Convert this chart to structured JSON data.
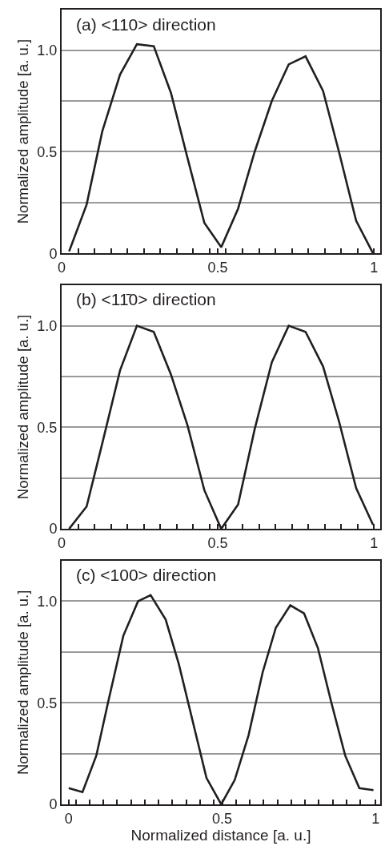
{
  "chart_data": [
    {
      "type": "line",
      "title": "(a) <110> direction",
      "ylabel": "Normalized amplitude [a. u.]",
      "x": [
        0.024,
        0.08,
        0.13,
        0.187,
        0.241,
        0.295,
        0.35,
        0.403,
        0.457,
        0.511,
        0.565,
        0.618,
        0.673,
        0.727,
        0.781,
        0.837,
        0.888,
        0.943,
        0.997
      ],
      "series": [
        {
          "color": "#231f20",
          "values": [
            0.01,
            0.24,
            0.6,
            0.88,
            1.03,
            1.02,
            0.79,
            0.47,
            0.15,
            0.03,
            0.22,
            0.5,
            0.75,
            0.93,
            0.97,
            0.8,
            0.5,
            0.16,
            0.0
          ]
        }
      ],
      "xlim": [
        0,
        1.02
      ],
      "ylim": [
        0,
        1.2
      ],
      "xticks": [
        0,
        {
          "value": 0.053,
          "label": null
        },
        {
          "value": 0.105,
          "label": null
        },
        {
          "value": 0.158,
          "label": null
        },
        {
          "value": 0.211,
          "label": null
        },
        {
          "value": 0.263,
          "label": null
        },
        {
          "value": 0.316,
          "label": null
        },
        {
          "value": 0.368,
          "label": null
        },
        {
          "value": 0.421,
          "label": null
        },
        {
          "value": 0.474,
          "label": null
        },
        0.5,
        {
          "value": 0.526,
          "label": null
        },
        {
          "value": 0.579,
          "label": null
        },
        {
          "value": 0.632,
          "label": null
        },
        {
          "value": 0.684,
          "label": null
        },
        {
          "value": 0.737,
          "label": null
        },
        {
          "value": 0.789,
          "label": null
        },
        {
          "value": 0.842,
          "label": null
        },
        {
          "value": 0.895,
          "label": null
        },
        {
          "value": 0.947,
          "label": null
        },
        1
      ],
      "yticks": [
        0,
        {
          "value": 0.25,
          "label": null
        },
        0.5,
        {
          "value": 0.75,
          "label": null
        },
        {
          "value": 1.0,
          "label": "1.0"
        }
      ],
      "grid": "y"
    },
    {
      "type": "line",
      "title": "(b) <11̄0> direction",
      "ylabel": "Normalized amplitude [a. u.]",
      "x": [
        0.024,
        0.08,
        0.13,
        0.187,
        0.241,
        0.295,
        0.35,
        0.403,
        0.457,
        0.511,
        0.565,
        0.618,
        0.673,
        0.727,
        0.781,
        0.837,
        0.888,
        0.943,
        0.997
      ],
      "series": [
        {
          "color": "#231f20",
          "values": [
            0.0,
            0.11,
            0.42,
            0.78,
            1.0,
            0.97,
            0.76,
            0.51,
            0.19,
            0.0,
            0.12,
            0.49,
            0.82,
            1.0,
            0.97,
            0.8,
            0.53,
            0.2,
            0.02
          ]
        }
      ],
      "xlim": [
        0,
        1.02
      ],
      "ylim": [
        0,
        1.2
      ],
      "xticks": [
        0,
        {
          "value": 0.053,
          "label": null
        },
        {
          "value": 0.105,
          "label": null
        },
        {
          "value": 0.158,
          "label": null
        },
        {
          "value": 0.211,
          "label": null
        },
        {
          "value": 0.263,
          "label": null
        },
        {
          "value": 0.316,
          "label": null
        },
        {
          "value": 0.368,
          "label": null
        },
        {
          "value": 0.421,
          "label": null
        },
        {
          "value": 0.474,
          "label": null
        },
        0.5,
        {
          "value": 0.526,
          "label": null
        },
        {
          "value": 0.579,
          "label": null
        },
        {
          "value": 0.632,
          "label": null
        },
        {
          "value": 0.684,
          "label": null
        },
        {
          "value": 0.737,
          "label": null
        },
        {
          "value": 0.789,
          "label": null
        },
        {
          "value": 0.842,
          "label": null
        },
        {
          "value": 0.895,
          "label": null
        },
        {
          "value": 0.947,
          "label": null
        },
        1
      ],
      "yticks": [
        0,
        {
          "value": 0.25,
          "label": null
        },
        0.5,
        {
          "value": 0.75,
          "label": null
        },
        {
          "value": 1.0,
          "label": "1.0"
        }
      ],
      "grid": "y"
    },
    {
      "type": "line",
      "title": "(c) <100> direction",
      "ylabel": "Normalized amplitude [a. u.]",
      "xlabel": "Normalized distance [a. u.]",
      "x": [
        0,
        0.045,
        0.09,
        0.128,
        0.178,
        0.226,
        0.267,
        0.316,
        0.359,
        0.449,
        0.497,
        0.541,
        0.586,
        0.632,
        0.675,
        0.722,
        0.767,
        0.812,
        0.856,
        0.901,
        0.947,
        0.993
      ],
      "series": [
        {
          "color": "#231f20",
          "values": [
            0.08,
            0.06,
            0.24,
            0.5,
            0.83,
            1.0,
            1.03,
            0.91,
            0.69,
            0.13,
            0.0,
            0.12,
            0.34,
            0.65,
            0.87,
            0.98,
            0.94,
            0.77,
            0.5,
            0.24,
            0.08,
            0.07
          ]
        }
      ],
      "xlim": [
        -0.023,
        1.015
      ],
      "ylim": [
        0,
        1.2
      ],
      "xticks": [
        0,
        {
          "value": 0.023,
          "label": null
        },
        {
          "value": 0.068,
          "label": null
        },
        {
          "value": 0.113,
          "label": null
        },
        {
          "value": 0.158,
          "label": null
        },
        {
          "value": 0.203,
          "label": null
        },
        {
          "value": 0.248,
          "label": null
        },
        {
          "value": 0.293,
          "label": null
        },
        {
          "value": 0.338,
          "label": null
        },
        {
          "value": 0.383,
          "label": null
        },
        {
          "value": 0.428,
          "label": null
        },
        {
          "value": 0.473,
          "label": null
        },
        0.5,
        {
          "value": 0.545,
          "label": null
        },
        {
          "value": 0.59,
          "label": null
        },
        {
          "value": 0.635,
          "label": null
        },
        {
          "value": 0.68,
          "label": null
        },
        {
          "value": 0.725,
          "label": null
        },
        {
          "value": 0.77,
          "label": null
        },
        {
          "value": 0.815,
          "label": null
        },
        {
          "value": 0.86,
          "label": null
        },
        {
          "value": 0.905,
          "label": null
        },
        {
          "value": 0.95,
          "label": null
        },
        1
      ],
      "yticks": [
        0,
        {
          "value": 0.25,
          "label": null
        },
        0.5,
        {
          "value": 0.75,
          "label": null
        },
        {
          "value": 1.0,
          "label": "1.0"
        }
      ],
      "grid": "y"
    }
  ]
}
